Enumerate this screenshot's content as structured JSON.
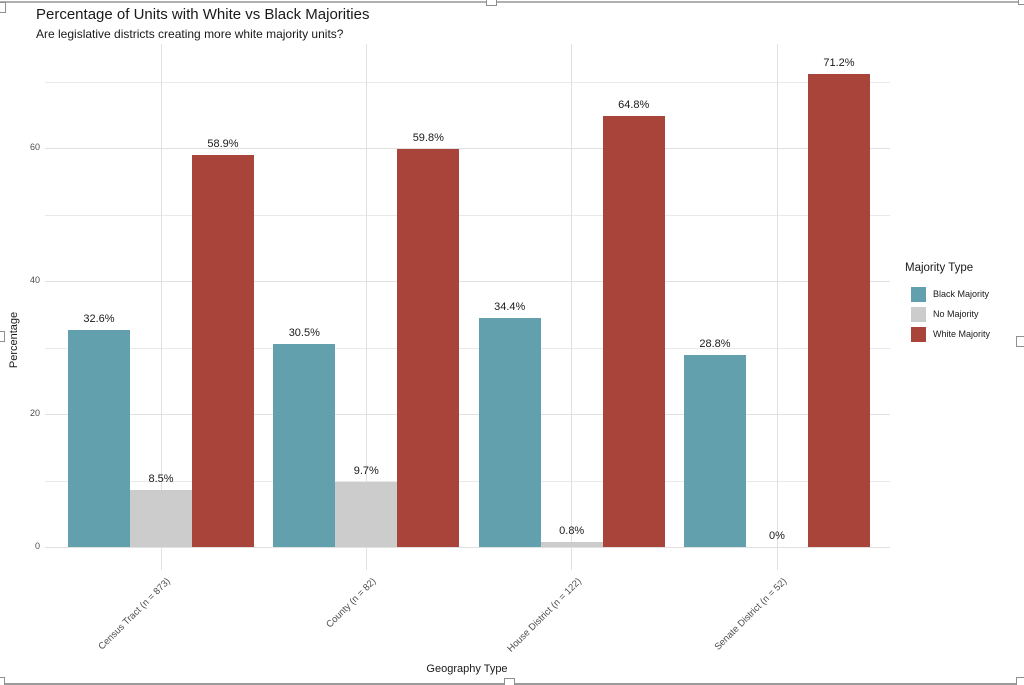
{
  "chart_data": {
    "type": "bar",
    "title": "Percentage of Units with White vs Black Majorities",
    "subtitle": "Are legislative districts creating more white majority units?",
    "xlabel": "Geography Type",
    "ylabel": "Percentage",
    "categories": [
      "Census Tract (n = 873)",
      "County (n = 82)",
      "House District (n = 122)",
      "Senate District (n = 52)"
    ],
    "series": [
      {
        "name": "Black Majority",
        "color": "#62a0ae",
        "values": [
          32.6,
          30.5,
          34.4,
          28.8
        ],
        "labels": [
          "32.6%",
          "30.5%",
          "34.4%",
          "28.8%"
        ]
      },
      {
        "name": "No Majority",
        "color": "#cccccc",
        "values": [
          8.5,
          9.7,
          0.8,
          0
        ],
        "labels": [
          "8.5%",
          "9.7%",
          "0.8%",
          "0%"
        ]
      },
      {
        "name": "White Majority",
        "color": "#a8443a",
        "values": [
          58.9,
          59.8,
          64.8,
          71.2
        ],
        "labels": [
          "58.9%",
          "59.8%",
          "64.8%",
          "71.2%"
        ]
      }
    ],
    "y_ticks": [
      0,
      20,
      40,
      60
    ],
    "y_tick_labels": [
      "0",
      "20",
      "40",
      "60"
    ],
    "y_minor": [
      10,
      30,
      50,
      70
    ],
    "ylim": [
      0,
      75
    ],
    "grid": true,
    "legend_title": "Majority Type",
    "legend_position": "right",
    "bar_orientation": "vertical-grouped"
  }
}
